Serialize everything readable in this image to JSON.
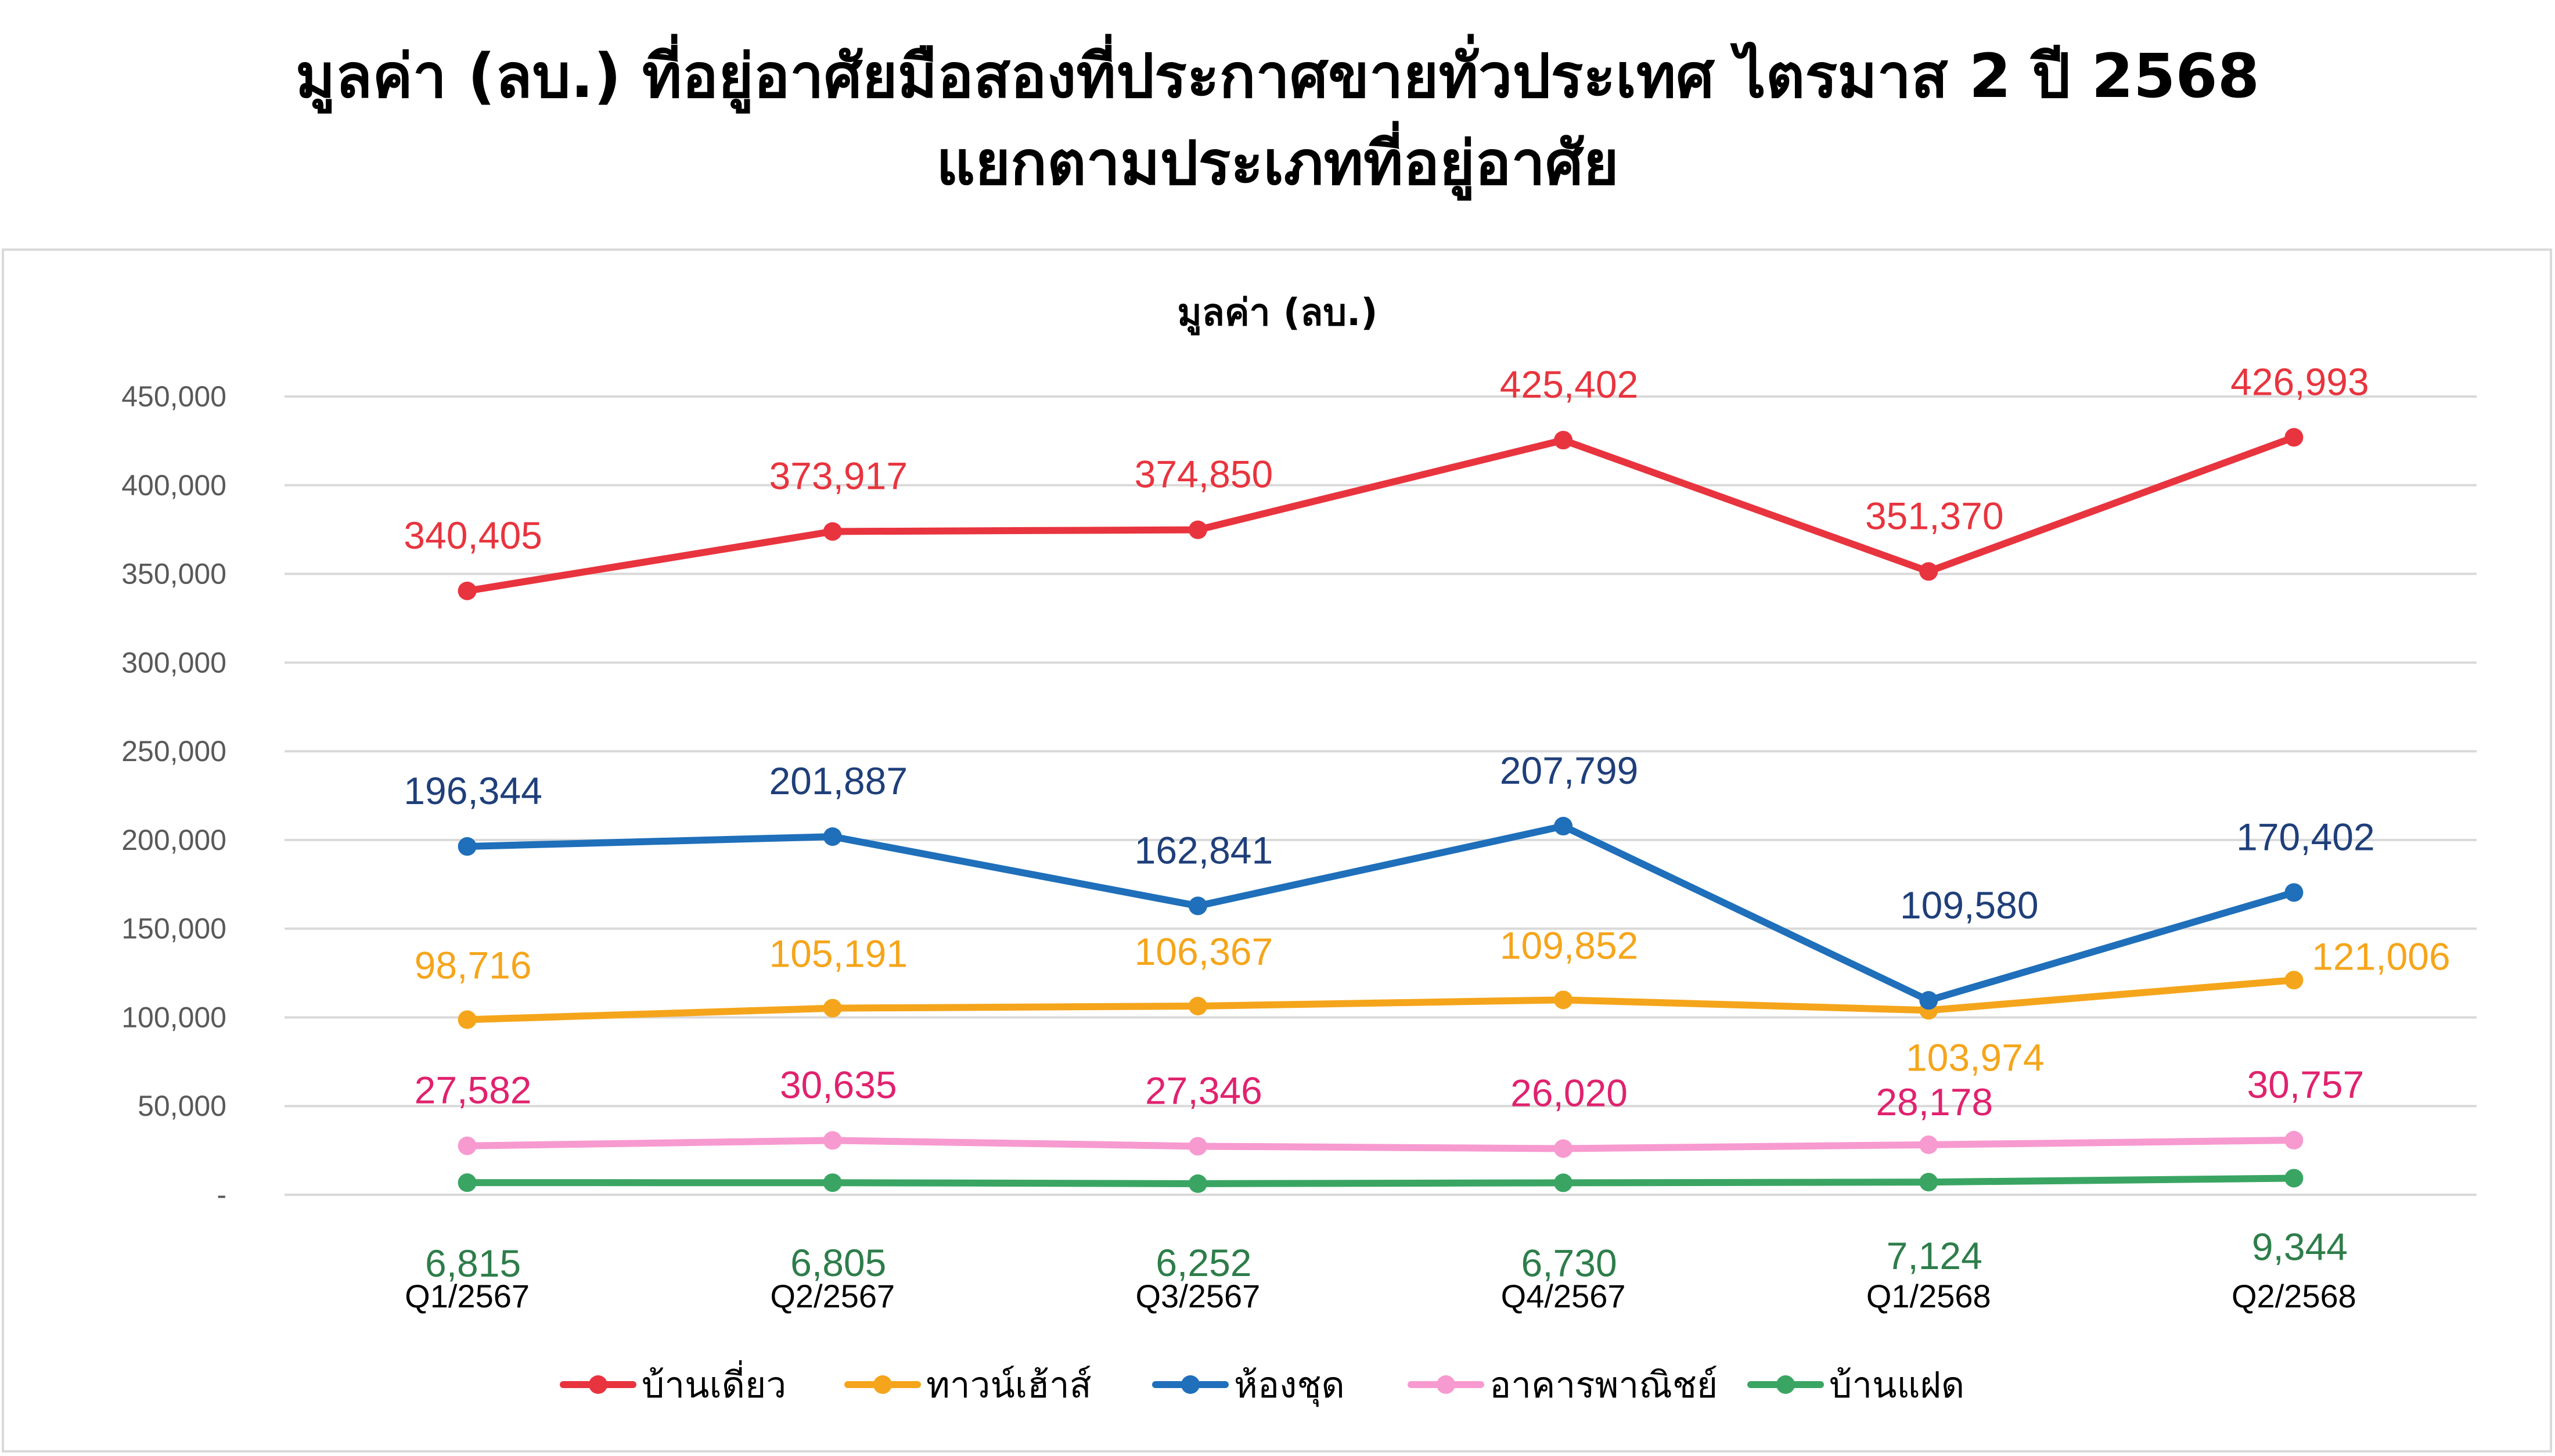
{
  "title": {
    "line1": "มูลค่า (ลบ.) ที่อยู่อาศัยมือสองที่ประกาศขายทั่วประเทศ ไตรมาส 2 ปี 2568",
    "line2": "แยกตามประเภทที่อยู่อาศัย"
  },
  "chart_data": {
    "type": "line",
    "title": "มูลค่า (ลบ.)",
    "categories": [
      "Q1/2567",
      "Q2/2567",
      "Q3/2567",
      "Q4/2567",
      "Q1/2568",
      "Q2/2568"
    ],
    "ylim": [
      0,
      450000
    ],
    "yticks": [
      {
        "value": 0,
        "label": "-"
      },
      {
        "value": 50000,
        "label": "50,000"
      },
      {
        "value": 100000,
        "label": "100,000"
      },
      {
        "value": 150000,
        "label": "150,000"
      },
      {
        "value": 200000,
        "label": "200,000"
      },
      {
        "value": 250000,
        "label": "250,000"
      },
      {
        "value": 300000,
        "label": "300,000"
      },
      {
        "value": 350000,
        "label": "350,000"
      },
      {
        "value": 400000,
        "label": "400,000"
      },
      {
        "value": 450000,
        "label": "450,000"
      }
    ],
    "grid": true,
    "legend": "bottom",
    "series": [
      {
        "name": "บ้านเดี่ยว",
        "color": "#e8343e",
        "label_color": "#e8343e",
        "values": [
          340405,
          373917,
          374850,
          425402,
          351370,
          426993
        ],
        "labels": [
          "340,405",
          "373,917",
          "374,850",
          "425,402",
          "351,370",
          "426,993"
        ]
      },
      {
        "name": "ทาวน์เฮ้าส์",
        "color": "#f5a51b",
        "label_color": "#f5a51b",
        "values": [
          98716,
          105191,
          106367,
          109852,
          103974,
          121006
        ],
        "labels": [
          "98,716",
          "105,191",
          "106,367",
          "109,852",
          "103,974",
          "121,006"
        ]
      },
      {
        "name": "ห้องชุด",
        "color": "#1f6fba",
        "label_color": "#1f3f7a",
        "values": [
          196344,
          201887,
          162841,
          207799,
          109580,
          170402
        ],
        "labels": [
          "196,344",
          "201,887",
          "162,841",
          "207,799",
          "109,580",
          "170,402"
        ]
      },
      {
        "name": "อาคารพาณิชย์",
        "color": "#f79ad0",
        "label_color": "#e0226e",
        "values": [
          27582,
          30635,
          27346,
          26020,
          28178,
          30757
        ],
        "labels": [
          "27,582",
          "30,635",
          "27,346",
          "26,020",
          "28,178",
          "30,757"
        ]
      },
      {
        "name": "บ้านแฝด",
        "color": "#3aa563",
        "label_color": "#2e7d4a",
        "values": [
          6815,
          6805,
          6252,
          6730,
          7124,
          9344
        ],
        "labels": [
          "6,815",
          "6,805",
          "6,252",
          "6,730",
          "7,124",
          "9,344"
        ]
      }
    ]
  }
}
